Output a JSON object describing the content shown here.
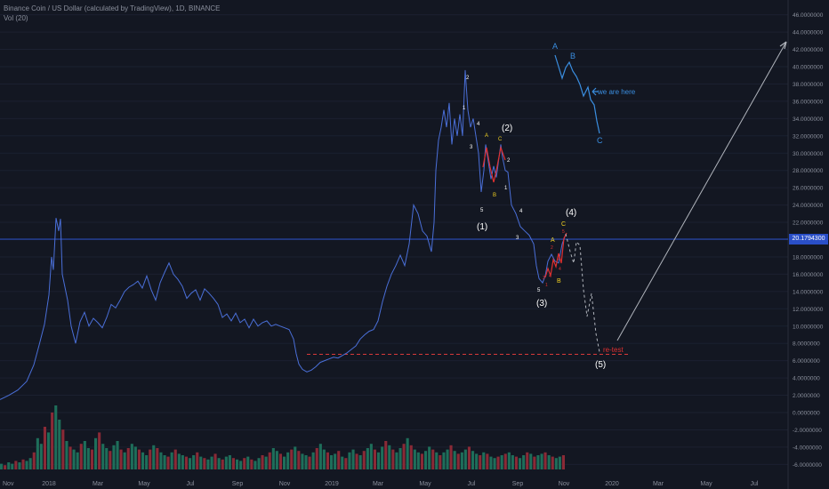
{
  "header": {
    "symbol_line": "Binance Coin / US Dollar (calculated by TradingView), 1D, BINANCE",
    "volume_line": "Vol (20)"
  },
  "price_badge": "20.1794300",
  "colors": {
    "background": "#131722",
    "price_line": "#4a6fd8",
    "grid": "#1b2030",
    "current_price_line": "#2a4fc8",
    "retest_line": "#d83a3a",
    "label_white": "#ffffff",
    "label_yellow": "#f0d020",
    "label_red": "#e03030",
    "label_blue": "#3a8ee0",
    "arrow_gray": "#b0b4bc",
    "vol_up": "#1e6e5a",
    "vol_down": "#8a2a36"
  },
  "chart_data": {
    "type": "line",
    "title": "Binance Coin / US Dollar (calculated by TradingView), 1D, BINANCE",
    "x_ticks": [
      "Nov",
      "2018",
      "Mar",
      "May",
      "Jul",
      "Sep",
      "Nov",
      "2019",
      "Mar",
      "May",
      "Jul",
      "Sep",
      "Nov",
      "2020",
      "Mar",
      "May",
      "Jul"
    ],
    "y_ticks": [
      "48.0000000",
      "46.0000000",
      "44.0000000",
      "42.0000000",
      "40.0000000",
      "38.0000000",
      "36.0000000",
      "34.0000000",
      "32.0000000",
      "30.0000000",
      "28.0000000",
      "26.0000000",
      "24.0000000",
      "22.0000000",
      "20.0000000",
      "18.0000000",
      "16.0000000",
      "14.0000000",
      "12.0000000",
      "10.0000000",
      "8.0000000",
      "6.0000000",
      "4.0000000",
      "2.0000000",
      "0.0000000",
      "-2.0000000",
      "-4.0000000",
      "-6.0000000"
    ],
    "ylim": [
      -7.5,
      48.5
    ],
    "current_price": 20.17943,
    "series": [
      {
        "points": [
          [
            0,
            1.5
          ],
          [
            10,
            2.0
          ],
          [
            20,
            2.6
          ],
          [
            30,
            3.6
          ],
          [
            38,
            5.5
          ],
          [
            44,
            7.8
          ],
          [
            50,
            10.2
          ],
          [
            55,
            13.6
          ],
          [
            58,
            18.0
          ],
          [
            60,
            16.5
          ],
          [
            63,
            22.5
          ],
          [
            66,
            21.0
          ],
          [
            68,
            22.4
          ],
          [
            70,
            16.0
          ],
          [
            73,
            14.5
          ],
          [
            76,
            13.0
          ],
          [
            80,
            10.0
          ],
          [
            85,
            8.0
          ],
          [
            90,
            10.5
          ],
          [
            95,
            11.6
          ],
          [
            100,
            10.0
          ],
          [
            105,
            10.9
          ],
          [
            110,
            10.4
          ],
          [
            115,
            9.8
          ],
          [
            120,
            11.0
          ],
          [
            125,
            12.5
          ],
          [
            130,
            12.1
          ],
          [
            135,
            13.0
          ],
          [
            140,
            14.0
          ],
          [
            145,
            14.5
          ],
          [
            150,
            14.8
          ],
          [
            155,
            15.2
          ],
          [
            160,
            14.4
          ],
          [
            165,
            15.8
          ],
          [
            170,
            14.2
          ],
          [
            175,
            13.0
          ],
          [
            180,
            15.0
          ],
          [
            185,
            16.2
          ],
          [
            190,
            17.3
          ],
          [
            195,
            16.0
          ],
          [
            200,
            15.4
          ],
          [
            205,
            14.6
          ],
          [
            210,
            13.2
          ],
          [
            215,
            13.8
          ],
          [
            220,
            14.2
          ],
          [
            225,
            13.0
          ],
          [
            230,
            14.3
          ],
          [
            235,
            13.8
          ],
          [
            240,
            13.2
          ],
          [
            245,
            12.5
          ],
          [
            250,
            11.0
          ],
          [
            255,
            11.4
          ],
          [
            260,
            10.6
          ],
          [
            265,
            11.5
          ],
          [
            270,
            10.4
          ],
          [
            275,
            10.8
          ],
          [
            280,
            9.8
          ],
          [
            285,
            10.8
          ],
          [
            290,
            10.0
          ],
          [
            295,
            10.4
          ],
          [
            300,
            10.6
          ],
          [
            305,
            10.0
          ],
          [
            310,
            10.2
          ],
          [
            315,
            10.0
          ],
          [
            320,
            9.8
          ],
          [
            325,
            9.6
          ],
          [
            330,
            8.5
          ],
          [
            333,
            6.8
          ],
          [
            336,
            5.6
          ],
          [
            340,
            5.0
          ],
          [
            345,
            4.7
          ],
          [
            350,
            4.9
          ],
          [
            355,
            5.3
          ],
          [
            360,
            5.8
          ],
          [
            365,
            6.0
          ],
          [
            370,
            6.2
          ],
          [
            375,
            6.4
          ],
          [
            380,
            6.3
          ],
          [
            385,
            6.6
          ],
          [
            390,
            6.9
          ],
          [
            395,
            7.3
          ],
          [
            400,
            7.7
          ],
          [
            405,
            8.5
          ],
          [
            410,
            9.0
          ],
          [
            415,
            9.4
          ],
          [
            420,
            9.6
          ],
          [
            425,
            10.6
          ],
          [
            430,
            12.8
          ],
          [
            435,
            14.6
          ],
          [
            440,
            16.0
          ],
          [
            445,
            17.0
          ],
          [
            450,
            18.2
          ],
          [
            455,
            17.0
          ],
          [
            460,
            19.5
          ],
          [
            465,
            24.0
          ],
          [
            470,
            23.0
          ],
          [
            475,
            21.0
          ],
          [
            480,
            20.4
          ],
          [
            485,
            18.6
          ],
          [
            488,
            22.0
          ],
          [
            490,
            28.0
          ],
          [
            493,
            31.5
          ],
          [
            496,
            33.0
          ],
          [
            499,
            35.0
          ],
          [
            502,
            33.0
          ],
          [
            505,
            35.8
          ],
          [
            508,
            31.0
          ],
          [
            511,
            34.0
          ],
          [
            514,
            32.0
          ],
          [
            517,
            34.5
          ],
          [
            520,
            32.0
          ],
          [
            523,
            39.6
          ],
          [
            526,
            35.0
          ],
          [
            529,
            33.0
          ],
          [
            532,
            34.0
          ],
          [
            535,
            32.0
          ],
          [
            538,
            30.0
          ],
          [
            541,
            25.5
          ],
          [
            544,
            28.0
          ],
          [
            546,
            31.0
          ],
          [
            549,
            29.0
          ],
          [
            552,
            27.0
          ],
          [
            555,
            28.5
          ],
          [
            558,
            27.2
          ],
          [
            561,
            29.5
          ],
          [
            563,
            31.0
          ],
          [
            565,
            29.5
          ],
          [
            568,
            28.0
          ],
          [
            571,
            27.8
          ],
          [
            575,
            24.0
          ],
          [
            580,
            23.0
          ],
          [
            585,
            21.5
          ],
          [
            590,
            21.0
          ],
          [
            595,
            20.5
          ],
          [
            600,
            19.5
          ],
          [
            603,
            17.0
          ],
          [
            606,
            15.5
          ],
          [
            610,
            15.0
          ],
          [
            613,
            15.8
          ],
          [
            616,
            17.5
          ],
          [
            620,
            18.3
          ],
          [
            624,
            17.5
          ],
          [
            628,
            17.3
          ],
          [
            632,
            19.5
          ],
          [
            636,
            20.6
          ]
        ],
        "color": "#4a6fd8"
      }
    ],
    "annotations": {
      "retest_label": "re-test",
      "retest_level": 6.8,
      "wave_labels": [
        "(1)",
        "(2)",
        "(3)",
        "(4)",
        "(5)"
      ],
      "inset_labels": [
        "A",
        "B",
        "C",
        "we are here"
      ],
      "sub_wave_labels": [
        "1",
        "2",
        "3",
        "4",
        "5",
        "A",
        "B",
        "C",
        "2",
        "1",
        "4",
        "3",
        "A",
        "B",
        "C",
        "5",
        "3",
        "4",
        "1",
        "2",
        "3",
        "4",
        "5"
      ]
    },
    "volume": [
      4,
      3,
      5,
      4,
      6,
      5,
      7,
      6,
      8,
      12,
      22,
      18,
      30,
      26,
      40,
      45,
      35,
      28,
      20,
      16,
      14,
      12,
      18,
      20,
      15,
      14,
      22,
      26,
      18,
      15,
      13,
      17,
      20,
      14,
      12,
      15,
      18,
      16,
      14,
      12,
      10,
      14,
      17,
      15,
      12,
      10,
      9,
      12,
      14,
      11,
      10,
      9,
      8,
      10,
      12,
      9,
      8,
      7,
      9,
      11,
      8,
      7,
      9,
      10,
      8,
      7,
      6,
      8,
      9,
      7,
      6,
      8,
      10,
      9,
      12,
      15,
      13,
      11,
      9,
      12,
      14,
      16,
      13,
      11,
      10,
      9,
      12,
      15,
      18,
      14,
      12,
      10,
      11,
      13,
      9,
      8,
      12,
      14,
      11,
      10,
      13,
      15,
      18,
      14,
      12,
      16,
      20,
      17,
      14,
      12,
      15,
      18,
      22,
      17,
      14,
      12,
      11,
      13,
      16,
      14,
      12,
      10,
      12,
      14,
      17,
      13,
      11,
      12,
      14,
      16,
      13,
      11,
      10,
      12,
      11,
      9,
      8,
      9,
      10,
      11,
      12,
      10,
      9,
      8,
      10,
      12,
      11,
      9,
      10,
      11,
      12,
      10,
      9,
      8,
      9,
      10
    ],
    "volume_up": [
      1,
      0,
      1,
      1,
      0,
      1,
      0,
      1,
      1,
      0,
      1,
      1,
      0,
      1,
      0,
      1,
      1,
      0,
      1,
      0,
      1,
      1,
      0,
      1,
      1,
      0,
      1,
      0,
      1,
      1,
      0,
      1,
      1,
      0,
      1,
      0,
      1,
      1,
      0,
      1,
      1,
      0,
      1,
      0,
      1,
      1,
      0,
      1,
      0,
      1,
      1,
      0,
      1,
      1,
      0,
      1,
      0,
      1,
      1,
      0,
      1,
      0,
      1,
      1,
      0,
      1,
      1,
      0,
      1,
      0,
      1,
      1,
      0,
      1,
      0,
      1,
      1,
      0,
      1,
      1,
      0,
      1,
      0,
      1,
      1,
      0,
      1,
      0,
      1,
      1,
      0,
      1,
      1,
      0,
      1,
      0,
      1,
      1,
      0,
      1,
      0,
      1,
      1,
      0,
      1,
      1,
      0,
      1,
      0,
      1,
      1,
      0,
      1,
      0,
      1,
      1,
      0,
      1,
      1,
      0,
      1,
      0,
      1,
      1,
      0,
      1,
      0,
      1,
      1,
      0,
      1,
      1,
      0,
      1,
      0,
      1,
      1,
      0,
      1,
      0,
      1,
      1,
      0,
      1,
      1,
      0,
      1,
      0,
      1,
      1,
      0,
      1,
      0,
      1,
      1,
      0
    ]
  }
}
